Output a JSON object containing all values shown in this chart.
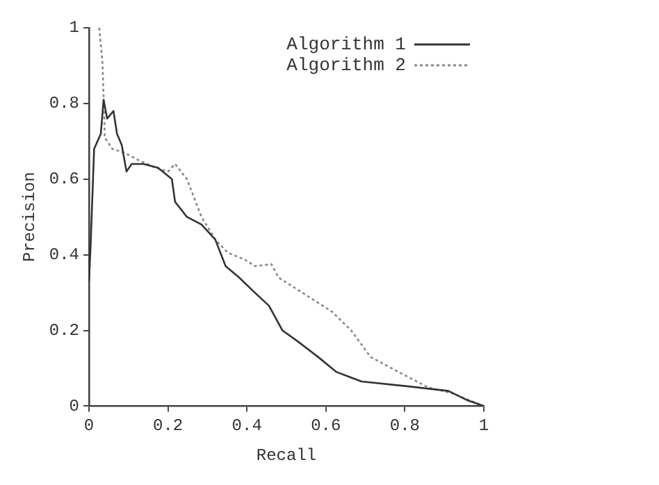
{
  "chart_data": {
    "type": "line",
    "xlabel": "Recall",
    "ylabel": "Precision",
    "xlim": [
      0,
      1
    ],
    "ylim": [
      0,
      1
    ],
    "xticks": [
      0,
      0.2,
      0.4,
      0.6,
      0.8,
      1
    ],
    "yticks": [
      0,
      0.2,
      0.4,
      0.6,
      0.8,
      1
    ],
    "grid": false,
    "legend": "top right",
    "marker": "none",
    "series": [
      {
        "name": "Algorithm 1",
        "color": "#333333",
        "line_style": "solid",
        "x": [
          0,
          0.004,
          0.013,
          0.03,
          0.037,
          0.046,
          0.062,
          0.071,
          0.083,
          0.095,
          0.108,
          0.138,
          0.175,
          0.21,
          0.218,
          0.248,
          0.285,
          0.32,
          0.346,
          0.38,
          0.42,
          0.456,
          0.49,
          0.53,
          0.58,
          0.627,
          0.69,
          0.81,
          0.91,
          0.957,
          1
        ],
        "values": [
          0.33,
          0.42,
          0.68,
          0.72,
          0.81,
          0.76,
          0.78,
          0.72,
          0.69,
          0.62,
          0.64,
          0.64,
          0.63,
          0.6,
          0.54,
          0.5,
          0.48,
          0.44,
          0.37,
          0.34,
          0.3,
          0.265,
          0.2,
          0.17,
          0.13,
          0.09,
          0.065,
          0.052,
          0.04,
          0.016,
          0
        ]
      },
      {
        "name": "Algorithm 2",
        "color": "#888888",
        "line_style": "dotted",
        "x": [
          0.026,
          0.034,
          0.038,
          0.04,
          0.059,
          0.089,
          0.126,
          0.169,
          0.2,
          0.218,
          0.248,
          0.285,
          0.32,
          0.352,
          0.395,
          0.42,
          0.462,
          0.48,
          0.54,
          0.615,
          0.664,
          0.713,
          0.786,
          0.86,
          0.92,
          1
        ],
        "values": [
          1,
          0.91,
          0.79,
          0.71,
          0.68,
          0.67,
          0.65,
          0.63,
          0.62,
          0.64,
          0.6,
          0.5,
          0.44,
          0.405,
          0.387,
          0.37,
          0.375,
          0.34,
          0.3,
          0.25,
          0.2,
          0.13,
          0.089,
          0.049,
          0.034,
          0
        ]
      }
    ]
  }
}
